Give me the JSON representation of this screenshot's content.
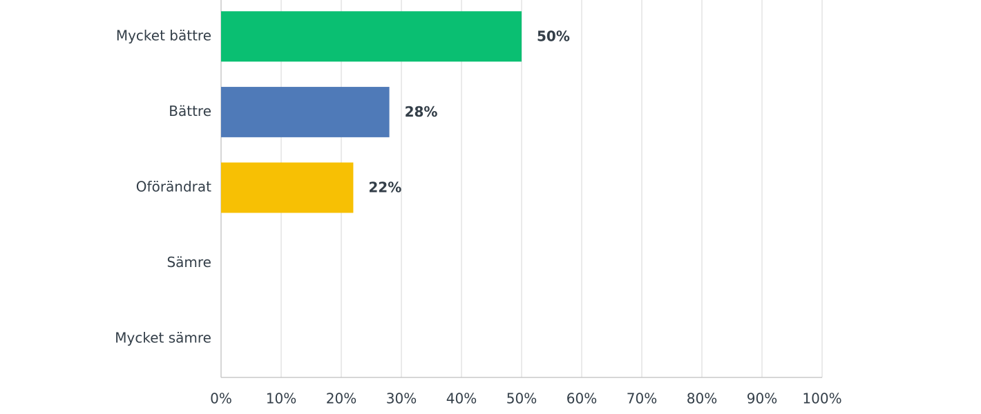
{
  "chart_data": {
    "type": "hbar",
    "categories": [
      "Mycket bättre",
      "Bättre",
      "Oförändrat",
      "Sämre",
      "Mycket sämre"
    ],
    "values": [
      50,
      28,
      22,
      0,
      0
    ],
    "value_labels": [
      "50%",
      "28%",
      "22%",
      null,
      null
    ],
    "colors": [
      "#0abf72",
      "#4f7ab8",
      "#f7c004",
      "#0abf72",
      "#4f7ab8"
    ],
    "xlim": [
      0,
      100
    ],
    "xticks": [
      {
        "value": 0,
        "label": "0%"
      },
      {
        "value": 10,
        "label": "10%"
      },
      {
        "value": 20,
        "label": "20%"
      },
      {
        "value": 30,
        "label": "30%"
      },
      {
        "value": 40,
        "label": "40%"
      },
      {
        "value": 50,
        "label": "50%"
      },
      {
        "value": 60,
        "label": "60%"
      },
      {
        "value": 70,
        "label": "70%"
      },
      {
        "value": 80,
        "label": "80%"
      },
      {
        "value": 90,
        "label": "90%"
      },
      {
        "value": 100,
        "label": "100%"
      }
    ],
    "grid": true
  }
}
